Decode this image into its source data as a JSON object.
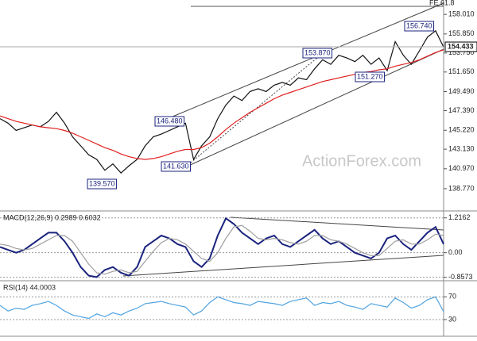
{
  "watermark": "ActionForex.com",
  "chart_data": [
    {
      "type": "line",
      "series": [
        {
          "color": "#111111",
          "values": [
            146.5,
            146.0,
            145.2,
            145.5,
            145.8,
            145.6,
            146.2,
            147.2,
            146.0,
            144.5,
            143.5,
            142.5,
            142.0,
            140.8,
            141.5,
            140.5,
            141.3,
            142.0,
            143.5,
            144.5,
            144.8,
            145.2,
            145.6,
            146.0,
            142.0,
            143.5,
            144.5,
            146.5,
            148.0,
            149.0,
            148.5,
            149.5,
            149.8,
            149.5,
            150.2,
            150.5,
            150.2,
            151.0,
            150.8,
            152.0,
            153.0,
            152.5,
            153.5,
            153.2,
            152.8,
            153.5,
            152.5,
            153.2,
            151.8,
            155.0,
            153.5,
            152.5,
            154.0,
            155.5,
            156.2,
            154.4
          ]
        },
        {
          "color": "#e02020",
          "values": [
            146.8,
            146.5,
            146.2,
            146.0,
            145.8,
            145.6,
            145.5,
            145.4,
            145.2,
            144.9,
            144.5,
            144.1,
            143.7,
            143.3,
            143.0,
            142.6,
            142.3,
            142.1,
            142.0,
            142.1,
            142.3,
            142.6,
            142.9,
            143.1,
            143.1,
            143.3,
            143.8,
            144.5,
            145.3,
            146.0,
            146.6,
            147.2,
            147.7,
            148.2,
            148.7,
            149.1,
            149.4,
            149.7,
            150.0,
            150.3,
            150.6,
            150.8,
            151.0,
            151.2,
            151.4,
            151.6,
            151.7,
            151.9,
            152.0,
            152.3,
            152.5,
            152.7,
            153.0,
            153.4,
            153.8,
            154.1
          ]
        }
      ],
      "ylim": [
        136.4,
        159.6
      ],
      "yticks": [
        {
          "value": 158.01,
          "label": "158.010"
        },
        {
          "value": 155.85,
          "label": "155.850"
        },
        {
          "value": 153.75,
          "label": "153.750"
        },
        {
          "value": 151.65,
          "label": "151.650"
        },
        {
          "value": 149.49,
          "label": "149.490"
        },
        {
          "value": 147.39,
          "label": "147.390"
        },
        {
          "value": 145.22,
          "label": "145.220"
        },
        {
          "value": 143.13,
          "label": "143.130"
        },
        {
          "value": 140.97,
          "label": "140.970"
        },
        {
          "value": 138.77,
          "label": "138.770"
        }
      ],
      "current_price": 154.433,
      "annotations": [
        "139.570",
        "141.630",
        "146.480",
        "153.870",
        "151.270",
        "156.740",
        "FE 61.8"
      ]
    },
    {
      "type": "line",
      "title": "MACD(12,26,9) 0.2989 0.6032",
      "series": [
        {
          "color": "#1a237e",
          "values": [
            0.2,
            0.1,
            0.0,
            0.1,
            0.3,
            0.5,
            0.7,
            0.7,
            0.4,
            0.0,
            -0.5,
            -0.8,
            -0.85,
            -0.6,
            -0.5,
            -0.7,
            -0.8,
            -0.5,
            0.2,
            0.4,
            0.6,
            0.5,
            0.3,
            0.2,
            -0.3,
            -0.5,
            -0.2,
            0.6,
            1.2,
            1.0,
            0.7,
            0.5,
            0.3,
            0.5,
            0.6,
            0.3,
            0.2,
            0.4,
            0.6,
            0.8,
            0.5,
            0.3,
            0.4,
            0.2,
            0.0,
            -0.1,
            -0.2,
            0.0,
            0.5,
            0.6,
            0.3,
            0.1,
            0.4,
            0.7,
            0.9,
            0.3
          ]
        },
        {
          "color": "#9e9e9e",
          "values": [
            0.3,
            0.25,
            0.15,
            0.1,
            0.15,
            0.3,
            0.45,
            0.6,
            0.6,
            0.4,
            0.0,
            -0.4,
            -0.7,
            -0.75,
            -0.65,
            -0.6,
            -0.7,
            -0.65,
            -0.3,
            0.05,
            0.35,
            0.5,
            0.45,
            0.3,
            0.05,
            -0.2,
            -0.3,
            0.0,
            0.5,
            0.9,
            0.95,
            0.75,
            0.5,
            0.45,
            0.5,
            0.45,
            0.35,
            0.3,
            0.4,
            0.6,
            0.6,
            0.45,
            0.4,
            0.3,
            0.15,
            0.0,
            -0.1,
            -0.1,
            0.15,
            0.4,
            0.45,
            0.3,
            0.3,
            0.45,
            0.65,
            0.6
          ]
        }
      ],
      "ylim": [
        -0.95,
        1.43
      ],
      "yticks": [
        1.2162,
        {
          "value": 0,
          "label": "0.00"
        },
        -0.8573
      ]
    },
    {
      "type": "line",
      "title": "RSI(14) 44.0003",
      "series": [
        {
          "color": "#4fa3e0",
          "values": [
            55,
            45,
            50,
            48,
            55,
            58,
            62,
            55,
            45,
            38,
            35,
            32,
            40,
            35,
            42,
            38,
            45,
            50,
            58,
            60,
            62,
            58,
            55,
            52,
            38,
            45,
            60,
            70,
            65,
            60,
            58,
            55,
            62,
            60,
            58,
            55,
            62,
            65,
            68,
            55,
            60,
            58,
            62,
            55,
            52,
            48,
            58,
            55,
            52,
            68,
            60,
            50,
            55,
            65,
            70,
            44
          ]
        }
      ],
      "ylim": [
        2,
        97
      ],
      "yticks": [
        70,
        30
      ]
    }
  ]
}
